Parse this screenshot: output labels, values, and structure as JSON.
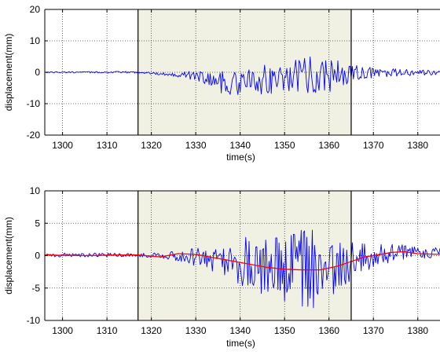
{
  "colors": {
    "background": "#ffffff",
    "highlight": "#f1f1e3",
    "grid": "#3a3a3a",
    "axis": "#000000",
    "signal": "#0000ff",
    "trend": "#ff0000"
  },
  "chart_data": [
    {
      "type": "line",
      "title": "",
      "xlabel": "time(s)",
      "ylabel": "displacement(mm)",
      "xlim": [
        1296,
        1385
      ],
      "ylim": [
        -20,
        20
      ],
      "xticks": [
        1300,
        1310,
        1320,
        1330,
        1340,
        1350,
        1360,
        1370,
        1380
      ],
      "yticks": [
        -20,
        -10,
        0,
        10,
        20
      ],
      "grid": true,
      "shaded_region": [
        1317,
        1365
      ],
      "series": [
        {
          "role": "signal",
          "style": "oscillation",
          "color": "#0000ff",
          "sample_step_s": 0.25,
          "centre": [
            [
              1296,
              0.0
            ],
            [
              1317,
              0.0
            ],
            [
              1322,
              -0.5
            ],
            [
              1327,
              -0.8
            ],
            [
              1331,
              -1.2
            ],
            [
              1334,
              -2.5
            ],
            [
              1337,
              -3.5
            ],
            [
              1340,
              -3.5
            ],
            [
              1345,
              -2.5
            ],
            [
              1350,
              -1.5
            ],
            [
              1355,
              -0.8
            ],
            [
              1360,
              -0.8
            ],
            [
              1365,
              -0.5
            ],
            [
              1370,
              -0.2
            ],
            [
              1385,
              -0.2
            ]
          ],
          "amplitude": [
            [
              1296,
              0.2
            ],
            [
              1317,
              0.3
            ],
            [
              1322,
              0.4
            ],
            [
              1326,
              0.8
            ],
            [
              1330,
              1.5
            ],
            [
              1333,
              3.0
            ],
            [
              1337,
              4.0
            ],
            [
              1340,
              4.0
            ],
            [
              1344,
              4.5
            ],
            [
              1348,
              5.0
            ],
            [
              1352,
              5.5
            ],
            [
              1356,
              6.0
            ],
            [
              1360,
              5.5
            ],
            [
              1364,
              4.0
            ],
            [
              1368,
              2.0
            ],
            [
              1372,
              1.5
            ],
            [
              1376,
              1.2
            ],
            [
              1380,
              1.0
            ],
            [
              1385,
              0.8
            ]
          ]
        }
      ]
    },
    {
      "type": "line",
      "title": "",
      "xlabel": "time(s)",
      "ylabel": "displacement(mm)",
      "xlim": [
        1296,
        1385
      ],
      "ylim": [
        -10,
        10
      ],
      "xticks": [
        1300,
        1310,
        1320,
        1330,
        1340,
        1350,
        1360,
        1370,
        1380
      ],
      "yticks": [
        -10,
        -5,
        0,
        5,
        10
      ],
      "grid": true,
      "shaded_region": [
        1317,
        1365
      ],
      "series": [
        {
          "role": "signal",
          "style": "oscillation",
          "color": "#0000ff",
          "sample_step_s": 0.25,
          "centre": [
            [
              1296,
              0.1
            ],
            [
              1317,
              0.1
            ],
            [
              1325,
              0.0
            ],
            [
              1332,
              -0.3
            ],
            [
              1338,
              -0.8
            ],
            [
              1343,
              -1.5
            ],
            [
              1348,
              -2.0
            ],
            [
              1353,
              -2.2
            ],
            [
              1358,
              -2.2
            ],
            [
              1362,
              -1.5
            ],
            [
              1365,
              -0.9
            ],
            [
              1368,
              -0.2
            ],
            [
              1372,
              0.3
            ],
            [
              1376,
              0.5
            ],
            [
              1385,
              0.5
            ]
          ],
          "amplitude": [
            [
              1296,
              0.3
            ],
            [
              1317,
              0.3
            ],
            [
              1322,
              0.4
            ],
            [
              1326,
              0.8
            ],
            [
              1330,
              1.5
            ],
            [
              1334,
              2.0
            ],
            [
              1338,
              2.5
            ],
            [
              1342,
              4.5
            ],
            [
              1346,
              4.5
            ],
            [
              1350,
              5.5
            ],
            [
              1354,
              6.5
            ],
            [
              1358,
              6.0
            ],
            [
              1362,
              4.5
            ],
            [
              1366,
              2.5
            ],
            [
              1370,
              2.0
            ],
            [
              1374,
              1.5
            ],
            [
              1378,
              1.0
            ],
            [
              1385,
              0.8
            ]
          ]
        },
        {
          "role": "trend",
          "style": "smooth",
          "color": "#ff0000",
          "points": [
            [
              1296,
              0.1
            ],
            [
              1305,
              0.0
            ],
            [
              1312,
              0.1
            ],
            [
              1317,
              0.1
            ],
            [
              1322,
              -0.2
            ],
            [
              1326,
              0.3
            ],
            [
              1330,
              0.2
            ],
            [
              1334,
              -0.3
            ],
            [
              1338,
              -0.8
            ],
            [
              1342,
              -1.3
            ],
            [
              1346,
              -1.8
            ],
            [
              1350,
              -2.1
            ],
            [
              1354,
              -2.2
            ],
            [
              1358,
              -2.2
            ],
            [
              1362,
              -1.6
            ],
            [
              1365,
              -0.9
            ],
            [
              1368,
              -0.2
            ],
            [
              1371,
              0.1
            ],
            [
              1374,
              0.5
            ],
            [
              1377,
              0.6
            ],
            [
              1380,
              0.3
            ],
            [
              1385,
              0.2
            ]
          ]
        }
      ]
    }
  ]
}
